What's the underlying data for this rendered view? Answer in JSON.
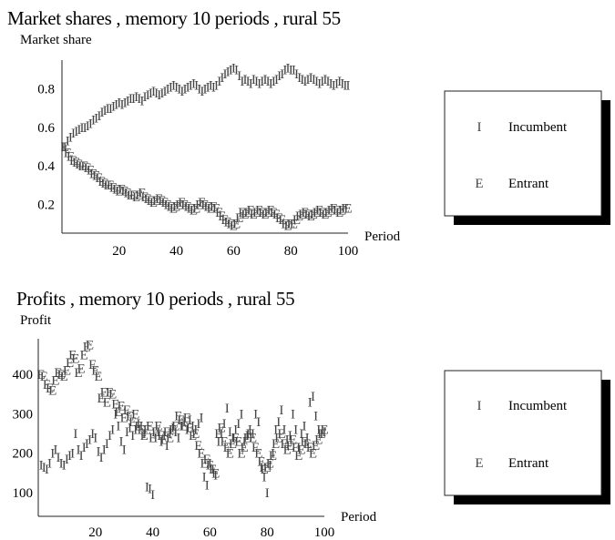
{
  "chart_data": [
    {
      "type": "scatter",
      "title": "Market shares , memory  10 periods , rural  55",
      "ylabel": "Market share",
      "xlabel": "Period",
      "xlim": [
        0,
        100
      ],
      "ylim": [
        0.05,
        0.95
      ],
      "xticks": [
        "20",
        "40",
        "60",
        "80",
        "100"
      ],
      "yticks": [
        "0.2",
        "0.4",
        "0.6",
        "0.8"
      ],
      "grid": false,
      "legend_position": "right",
      "series": [
        {
          "name": "Incumbent",
          "marker": "I",
          "values": [
            0.5,
            0.53,
            0.55,
            0.57,
            0.58,
            0.59,
            0.6,
            0.6,
            0.61,
            0.62,
            0.64,
            0.65,
            0.66,
            0.68,
            0.69,
            0.7,
            0.7,
            0.71,
            0.72,
            0.73,
            0.72,
            0.73,
            0.74,
            0.75,
            0.75,
            0.76,
            0.75,
            0.74,
            0.76,
            0.77,
            0.78,
            0.79,
            0.78,
            0.77,
            0.78,
            0.79,
            0.8,
            0.81,
            0.82,
            0.81,
            0.8,
            0.79,
            0.8,
            0.81,
            0.82,
            0.83,
            0.82,
            0.8,
            0.79,
            0.8,
            0.81,
            0.82,
            0.81,
            0.82,
            0.84,
            0.86,
            0.88,
            0.89,
            0.9,
            0.91,
            0.9,
            0.87,
            0.84,
            0.85,
            0.84,
            0.83,
            0.85,
            0.84,
            0.83,
            0.84,
            0.85,
            0.84,
            0.83,
            0.84,
            0.85,
            0.87,
            0.88,
            0.9,
            0.91,
            0.9,
            0.9,
            0.88,
            0.86,
            0.85,
            0.84,
            0.85,
            0.86,
            0.85,
            0.84,
            0.83,
            0.84,
            0.85,
            0.84,
            0.83,
            0.82,
            0.83,
            0.84,
            0.83,
            0.82,
            0.82
          ]
        },
        {
          "name": "Entrant",
          "marker": "E",
          "values": [
            0.5,
            0.47,
            0.45,
            0.43,
            0.42,
            0.41,
            0.4,
            0.4,
            0.39,
            0.38,
            0.36,
            0.35,
            0.34,
            0.32,
            0.31,
            0.3,
            0.3,
            0.29,
            0.28,
            0.27,
            0.28,
            0.27,
            0.26,
            0.25,
            0.25,
            0.24,
            0.25,
            0.26,
            0.24,
            0.23,
            0.22,
            0.21,
            0.22,
            0.23,
            0.22,
            0.21,
            0.2,
            0.19,
            0.18,
            0.19,
            0.2,
            0.21,
            0.2,
            0.19,
            0.18,
            0.17,
            0.18,
            0.2,
            0.21,
            0.2,
            0.19,
            0.18,
            0.19,
            0.18,
            0.16,
            0.14,
            0.12,
            0.11,
            0.1,
            0.09,
            0.1,
            0.13,
            0.16,
            0.15,
            0.16,
            0.17,
            0.15,
            0.16,
            0.17,
            0.16,
            0.15,
            0.16,
            0.17,
            0.16,
            0.15,
            0.13,
            0.12,
            0.1,
            0.09,
            0.1,
            0.1,
            0.12,
            0.14,
            0.15,
            0.16,
            0.15,
            0.14,
            0.15,
            0.16,
            0.17,
            0.16,
            0.15,
            0.16,
            0.17,
            0.18,
            0.17,
            0.16,
            0.17,
            0.18,
            0.18
          ]
        }
      ]
    },
    {
      "type": "scatter",
      "title": "Profits , memory  10 periods , rural  55",
      "ylabel": "Profit",
      "xlabel": "Period",
      "xlim": [
        0,
        100
      ],
      "ylim": [
        40,
        490
      ],
      "xticks": [
        "20",
        "40",
        "60",
        "80",
        "100"
      ],
      "yticks": [
        "100",
        "200",
        "300",
        "400"
      ],
      "grid": false,
      "legend_position": "right",
      "series": [
        {
          "name": "Incumbent",
          "marker": "I",
          "values": [
            170,
            165,
            160,
            175,
            200,
            210,
            190,
            175,
            170,
            185,
            195,
            200,
            250,
            210,
            195,
            215,
            225,
            235,
            250,
            240,
            205,
            190,
            210,
            225,
            245,
            260,
            300,
            270,
            230,
            210,
            255,
            265,
            245,
            260,
            275,
            270,
            250,
            115,
            110,
            95,
            240,
            255,
            230,
            245,
            220,
            250,
            265,
            255,
            240,
            270,
            280,
            260,
            285,
            270,
            260,
            275,
            290,
            140,
            120,
            175,
            160,
            145,
            230,
            250,
            275,
            315,
            255,
            240,
            260,
            275,
            300,
            230,
            245,
            260,
            250,
            300,
            280,
            165,
            140,
            100,
            170,
            200,
            260,
            280,
            310,
            260,
            235,
            245,
            300,
            260,
            215,
            250,
            270,
            240,
            330,
            345,
            295,
            260,
            250,
            255
          ]
        },
        {
          "name": "Entrant",
          "marker": "E",
          "values": [
            400,
            395,
            375,
            365,
            360,
            385,
            405,
            400,
            395,
            410,
            430,
            450,
            440,
            405,
            415,
            450,
            470,
            475,
            425,
            410,
            395,
            340,
            355,
            330,
            355,
            350,
            325,
            305,
            320,
            290,
            310,
            295,
            280,
            300,
            270,
            260,
            245,
            260,
            270,
            240,
            255,
            270,
            245,
            235,
            255,
            240,
            260,
            270,
            295,
            285,
            270,
            290,
            265,
            245,
            250,
            220,
            200,
            175,
            185,
            170,
            160,
            150,
            250,
            265,
            230,
            215,
            200,
            225,
            240,
            230,
            200,
            215,
            240,
            250,
            240,
            215,
            200,
            180,
            160,
            165,
            175,
            195,
            225,
            240,
            250,
            225,
            210,
            220,
            235,
            215,
            195,
            210,
            230,
            225,
            215,
            200,
            220,
            235,
            250,
            260
          ]
        }
      ]
    }
  ],
  "legends": [
    {
      "items": [
        {
          "symbol": "I",
          "label": "Incumbent"
        },
        {
          "symbol": "E",
          "label": "Entrant"
        }
      ]
    },
    {
      "items": [
        {
          "symbol": "I",
          "label": "Incumbent"
        },
        {
          "symbol": "E",
          "label": "Entrant"
        }
      ]
    }
  ]
}
